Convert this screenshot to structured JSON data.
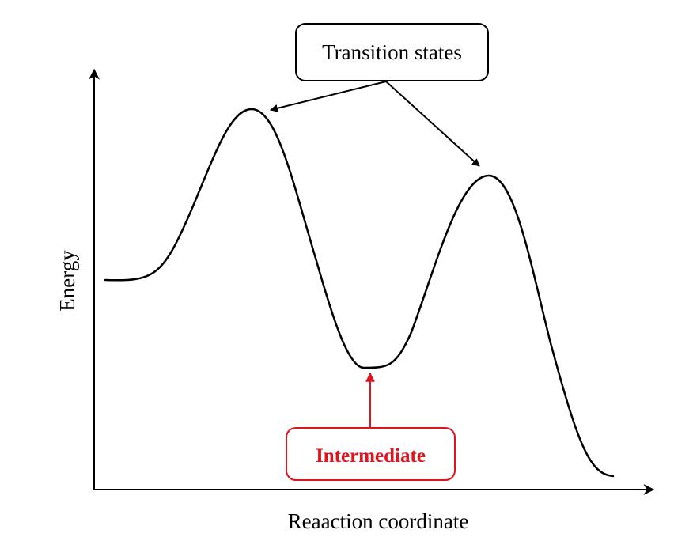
{
  "axes": {
    "y_label": "Energy",
    "x_label": "Reaaction coordinate"
  },
  "callouts": {
    "transition_states": "Transition states",
    "intermediate": "Intermediate"
  },
  "colors": {
    "ink": "#000000",
    "intermediate": "#e0141e",
    "background": "#ffffff"
  }
}
